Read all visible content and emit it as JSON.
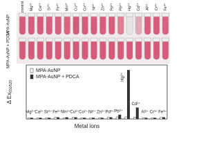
{
  "tubes": {
    "column_labels": [
      "control",
      "Mg²⁺",
      "Ca²⁺",
      "Sr²⁺",
      "Fe²⁺",
      "Mn²⁺",
      "Cu²⁺",
      "Co²⁺",
      "Ni²⁺",
      "Zn²⁺",
      "Pd²⁺",
      "Pb²⁺",
      "Hg²⁺",
      "Cd²⁺",
      "Al³⁺",
      "Cr³⁺",
      "Fe³⁺"
    ],
    "row_labels": [
      "MPA-AuNP",
      "MPA-AuNP + PDCA"
    ]
  },
  "chart_data": {
    "type": "bar",
    "ylabel": "Δ Ex",
    "ylabel_sub": "650/520",
    "xlabel": "Metal ions",
    "categories": [
      "Mg²⁺",
      "Ca²⁺",
      "Sr²⁺",
      "Fe²⁺",
      "Mn²⁺",
      "Cu²⁺",
      "Co²⁺",
      "Ni²⁺",
      "Zn²⁺",
      "Pd²⁺",
      "Pb²⁺",
      "Hg²⁺",
      "Cd²⁺",
      "Al³⁺",
      "Cr³⁺",
      "Fe³⁺"
    ],
    "series": [
      {
        "name": "MPA-AuNP",
        "color": "#ffffff",
        "values": [
          0.02,
          0.02,
          0.02,
          0.03,
          0.02,
          0.03,
          0.02,
          0.02,
          0.02,
          0.03,
          0.04,
          0.04,
          0.03,
          0.02,
          0.02,
          0.03
        ]
      },
      {
        "name": "MPA-AuNP + PDCA",
        "color": "#333333",
        "values": [
          0.02,
          0.02,
          0.02,
          0.03,
          0.03,
          0.03,
          0.02,
          0.02,
          0.02,
          0.03,
          0.08,
          0.95,
          0.22,
          0.02,
          0.02,
          0.03
        ]
      }
    ],
    "ylim": [
      0,
      1.05
    ],
    "legend": "upper-left"
  }
}
